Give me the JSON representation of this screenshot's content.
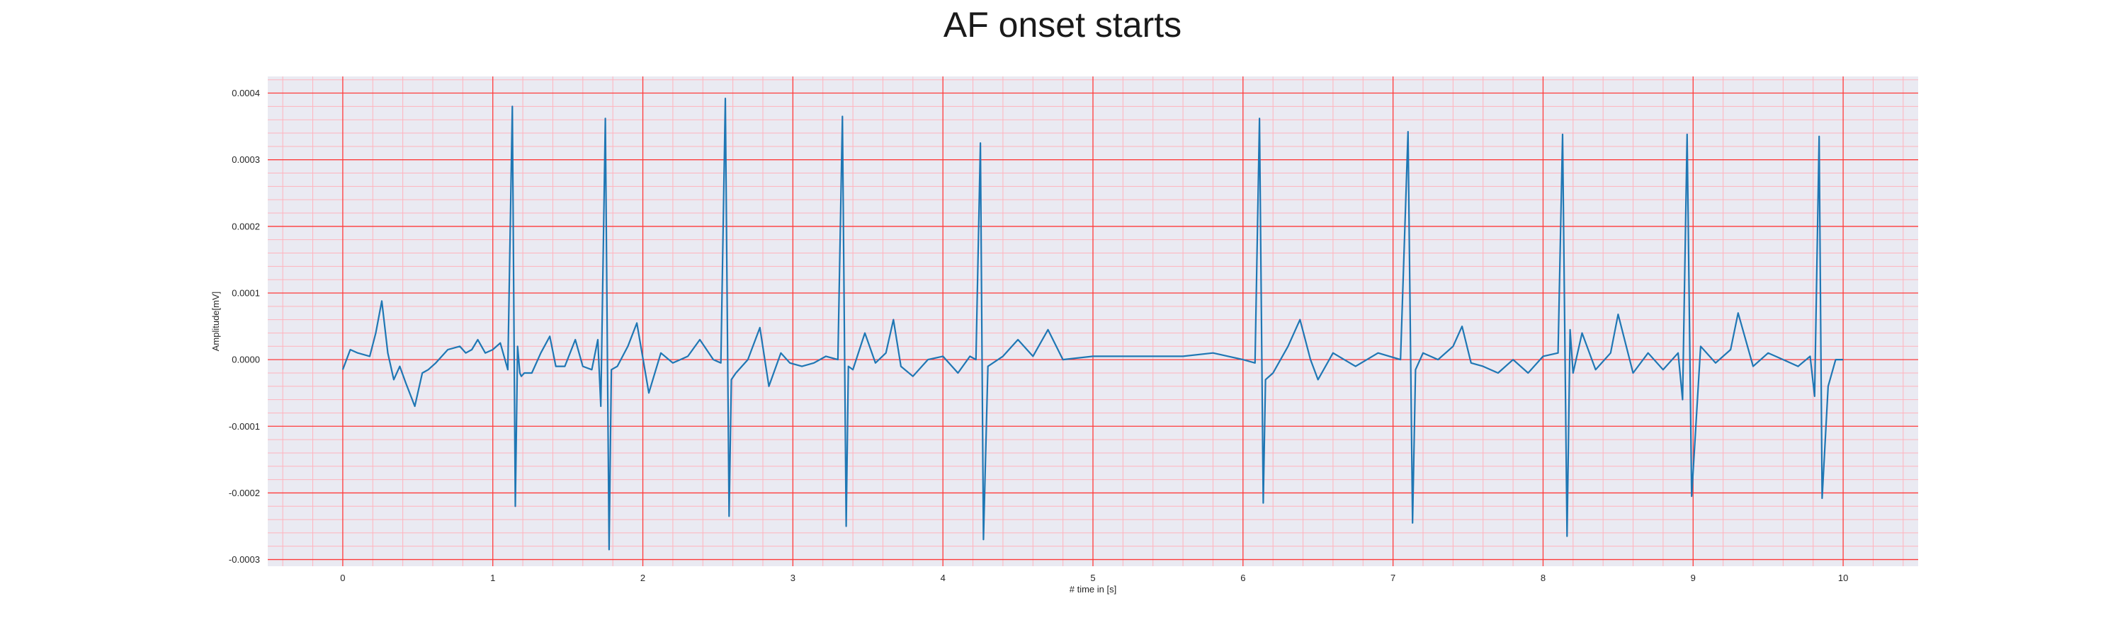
{
  "chart_data": {
    "type": "line",
    "title": "AF onset starts",
    "xlabel": "# time in [s]",
    "ylabel": "Amplitude[mV]",
    "xlim": [
      -0.5,
      10.5
    ],
    "ylim": [
      -0.00031,
      0.000425
    ],
    "x_ticks": [
      0,
      1,
      2,
      3,
      4,
      5,
      6,
      7,
      8,
      9,
      10
    ],
    "x_tick_labels": [
      "0",
      "1",
      "2",
      "3",
      "4",
      "5",
      "6",
      "7",
      "8",
      "9",
      "10"
    ],
    "y_ticks": [
      -0.0003,
      -0.0002,
      -0.0001,
      0.0,
      0.0001,
      0.0002,
      0.0003,
      0.0004
    ],
    "y_tick_labels": [
      "-0.0003",
      "-0.0002",
      "-0.0001",
      "0.0000",
      "0.0001",
      "0.0002",
      "0.0003",
      "0.0004"
    ],
    "grid": "major and minor",
    "colors": {
      "line": "#1f77b4",
      "background": "#eaeaf2",
      "major_grid": "#ff3b3b",
      "minor_grid": "#ffb3bd"
    },
    "series": [
      {
        "x": [
          0.0,
          0.05,
          0.1,
          0.18,
          0.22,
          0.26,
          0.3,
          0.34,
          0.38,
          0.42,
          0.48,
          0.53,
          0.57,
          0.62,
          0.7,
          0.78,
          0.82,
          0.86,
          0.9,
          0.95,
          1.0,
          1.05,
          1.1,
          1.13,
          1.15,
          1.165,
          1.18,
          1.19,
          1.21,
          1.26,
          1.32,
          1.38,
          1.42,
          1.48,
          1.55,
          1.6,
          1.66,
          1.7,
          1.72,
          1.75,
          1.775,
          1.79,
          1.83,
          1.9,
          1.96,
          2.04,
          2.12,
          2.2,
          2.3,
          2.38,
          2.47,
          2.52,
          2.55,
          2.575,
          2.59,
          2.62,
          2.7,
          2.78,
          2.84,
          2.92,
          2.98,
          3.06,
          3.14,
          3.22,
          3.3,
          3.33,
          3.355,
          3.37,
          3.4,
          3.48,
          3.55,
          3.62,
          3.67,
          3.72,
          3.8,
          3.9,
          4.0,
          4.1,
          4.18,
          4.22,
          4.25,
          4.27,
          4.3,
          4.4,
          4.5,
          4.6,
          4.7,
          4.8,
          5.0,
          5.2,
          5.4,
          5.6,
          5.8,
          6.0,
          6.08,
          6.11,
          6.135,
          6.15,
          6.2,
          6.3,
          6.38,
          6.45,
          6.5,
          6.6,
          6.75,
          6.9,
          7.05,
          7.1,
          7.13,
          7.15,
          7.2,
          7.3,
          7.4,
          7.46,
          7.52,
          7.6,
          7.7,
          7.8,
          7.9,
          8.0,
          8.1,
          8.13,
          8.16,
          8.18,
          8.2,
          8.26,
          8.35,
          8.45,
          8.5,
          8.6,
          8.7,
          8.8,
          8.9,
          8.93,
          8.96,
          8.99,
          9.05,
          9.15,
          9.25,
          9.3,
          9.4,
          9.5,
          9.6,
          9.7,
          9.78,
          9.81,
          9.84,
          9.86,
          9.9,
          9.95,
          10.0
        ],
        "values": [
          -1.5e-05,
          1.5e-05,
          1e-05,
          5e-06,
          4e-05,
          8.8e-05,
          1e-05,
          -3e-05,
          -1e-05,
          -3.5e-05,
          -7e-05,
          -2e-05,
          -1.5e-05,
          -5e-06,
          1.5e-05,
          2e-05,
          1e-05,
          1.5e-05,
          3e-05,
          1e-05,
          1.5e-05,
          2.5e-05,
          -1.5e-05,
          0.00038,
          -0.00022,
          2e-05,
          -2e-05,
          -2.5e-05,
          -2e-05,
          -2e-05,
          1e-05,
          3.5e-05,
          -1e-05,
          -1e-05,
          3e-05,
          -1e-05,
          -1.5e-05,
          3e-05,
          -7e-05,
          0.000362,
          -0.000285,
          -1.5e-05,
          -1e-05,
          2e-05,
          5.5e-05,
          -5e-05,
          1e-05,
          -5e-06,
          5e-06,
          3e-05,
          0.0,
          -5e-06,
          0.000392,
          -0.000235,
          -3e-05,
          -2e-05,
          0.0,
          4.8e-05,
          -4e-05,
          1e-05,
          -5e-06,
          -1e-05,
          -5e-06,
          5e-06,
          0.0,
          0.000365,
          -0.00025,
          -1e-05,
          -1.5e-05,
          4e-05,
          -5e-06,
          1e-05,
          6e-05,
          -1e-05,
          -2.5e-05,
          0.0,
          5e-06,
          -2e-05,
          5e-06,
          0.0,
          0.000325,
          -0.00027,
          -1e-05,
          5e-06,
          3e-05,
          5e-06,
          4.5e-05,
          0.0,
          5e-06,
          5e-06,
          5e-06,
          5e-06,
          1e-05,
          0.0,
          -5e-06,
          0.000362,
          -0.000215,
          -3e-05,
          -2e-05,
          2e-05,
          6e-05,
          0.0,
          -3e-05,
          1e-05,
          -1e-05,
          1e-05,
          0.0,
          0.000342,
          -0.000245,
          -1.5e-05,
          1e-05,
          0.0,
          2e-05,
          5e-05,
          -5e-06,
          -1e-05,
          -2e-05,
          0.0,
          -2e-05,
          5e-06,
          1e-05,
          0.000338,
          -0.000265,
          4.5e-05,
          -2e-05,
          4e-05,
          -1.5e-05,
          1e-05,
          6.8e-05,
          -2e-05,
          1e-05,
          -1.5e-05,
          1e-05,
          -6e-05,
          0.000338,
          -0.000205,
          2e-05,
          -5e-06,
          1.5e-05,
          7e-05,
          -1e-05,
          1e-05,
          0.0,
          -1e-05,
          5e-06,
          -5.5e-05,
          0.000335,
          -0.000208,
          -4e-05,
          0.0,
          0.0
        ]
      }
    ]
  }
}
